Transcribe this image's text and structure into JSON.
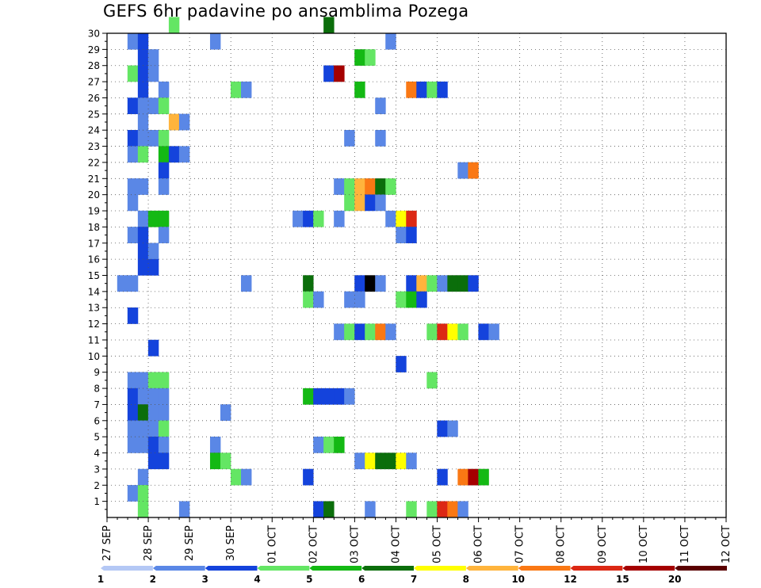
{
  "chart_data": {
    "type": "heatmap",
    "title": "GEFS 6hr padavine po ansamblima Pozega",
    "xlabel": "",
    "ylabel": "",
    "x_ticks": [
      "27 SEP",
      "28 SEP",
      "29 SEP",
      "30 SEP",
      "01 OCT",
      "02 OCT",
      "03 OCT",
      "04 OCT",
      "05 OCT",
      "06 OCT",
      "07 OCT",
      "08 OCT",
      "09 OCT",
      "10 OCT",
      "11 OCT",
      "12 OCT"
    ],
    "x_range": [
      0,
      60
    ],
    "x_step": "6 hours",
    "y_range": [
      0,
      30
    ],
    "y_ticks": [
      1,
      2,
      3,
      4,
      5,
      6,
      7,
      8,
      9,
      10,
      11,
      12,
      13,
      14,
      15,
      16,
      17,
      18,
      19,
      20,
      21,
      22,
      23,
      24,
      25,
      26,
      27,
      28,
      29,
      30
    ],
    "grid": true,
    "legend": {
      "placement": "bottom",
      "colors": [
        "#b4c8f5",
        "#5a87e6",
        "#1443dc",
        "#64e664",
        "#14b914",
        "#0b6e0b",
        "#ffff00",
        "#ffb43c",
        "#fa7814",
        "#dc2814",
        "#a50000",
        "#5a0000"
      ],
      "labels": [
        "1",
        "2",
        "3",
        "4",
        "5",
        "6",
        "7",
        "8",
        "10",
        "12",
        "15",
        "20"
      ]
    },
    "cells": [
      [
        6,
        30,
        3
      ],
      [
        21,
        30,
        5
      ],
      [
        2,
        29,
        1
      ],
      [
        3,
        29,
        2
      ],
      [
        10,
        29,
        1
      ],
      [
        27,
        29,
        1
      ],
      [
        3,
        28,
        2
      ],
      [
        4,
        28,
        1
      ],
      [
        24,
        28,
        4
      ],
      [
        25,
        28,
        3
      ],
      [
        2,
        27,
        3
      ],
      [
        3,
        27,
        2
      ],
      [
        4,
        27,
        1
      ],
      [
        21,
        27,
        2
      ],
      [
        22,
        27,
        10
      ],
      [
        3,
        26,
        2
      ],
      [
        5,
        26,
        1
      ],
      [
        12,
        26,
        3
      ],
      [
        13,
        26,
        1
      ],
      [
        24,
        26,
        4
      ],
      [
        29,
        26,
        8
      ],
      [
        30,
        26,
        2
      ],
      [
        31,
        26,
        3
      ],
      [
        32,
        26,
        2
      ],
      [
        2,
        25,
        2
      ],
      [
        3,
        25,
        1
      ],
      [
        4,
        25,
        1
      ],
      [
        5,
        25,
        3
      ],
      [
        26,
        25,
        1
      ],
      [
        3,
        24,
        1
      ],
      [
        6,
        24,
        7
      ],
      [
        7,
        24,
        1
      ],
      [
        2,
        23,
        2
      ],
      [
        3,
        23,
        1
      ],
      [
        4,
        23,
        1
      ],
      [
        5,
        23,
        3
      ],
      [
        23,
        23,
        1
      ],
      [
        26,
        23,
        1
      ],
      [
        2,
        22,
        1
      ],
      [
        3,
        22,
        3
      ],
      [
        5,
        22,
        4
      ],
      [
        6,
        22,
        2
      ],
      [
        7,
        22,
        1
      ],
      [
        5,
        21,
        2
      ],
      [
        34,
        21,
        1
      ],
      [
        35,
        21,
        8
      ],
      [
        2,
        20,
        1
      ],
      [
        3,
        20,
        1
      ],
      [
        5,
        20,
        1
      ],
      [
        22,
        20,
        1
      ],
      [
        23,
        20,
        3
      ],
      [
        24,
        20,
        7
      ],
      [
        25,
        20,
        8
      ],
      [
        26,
        20,
        5
      ],
      [
        27,
        20,
        3
      ],
      [
        2,
        19,
        1
      ],
      [
        23,
        19,
        3
      ],
      [
        24,
        19,
        7
      ],
      [
        25,
        19,
        2
      ],
      [
        26,
        19,
        1
      ],
      [
        3,
        18,
        1
      ],
      [
        4,
        18,
        4
      ],
      [
        5,
        18,
        4
      ],
      [
        18,
        18,
        1
      ],
      [
        19,
        18,
        2
      ],
      [
        20,
        18,
        3
      ],
      [
        22,
        18,
        1
      ],
      [
        27,
        18,
        1
      ],
      [
        28,
        18,
        6
      ],
      [
        29,
        18,
        9
      ],
      [
        2,
        17,
        1
      ],
      [
        3,
        17,
        2
      ],
      [
        5,
        17,
        1
      ],
      [
        28,
        17,
        1
      ],
      [
        29,
        17,
        2
      ],
      [
        3,
        16,
        2
      ],
      [
        4,
        16,
        1
      ],
      [
        3,
        15,
        2
      ],
      [
        4,
        15,
        2
      ],
      [
        1,
        14,
        1
      ],
      [
        2,
        14,
        1
      ],
      [
        13,
        14,
        1
      ],
      [
        19,
        14,
        5
      ],
      [
        24,
        14,
        2
      ],
      [
        25,
        14,
        12
      ],
      [
        26,
        14,
        1
      ],
      [
        29,
        14,
        2
      ],
      [
        30,
        14,
        7
      ],
      [
        31,
        14,
        3
      ],
      [
        32,
        14,
        1
      ],
      [
        33,
        14,
        5
      ],
      [
        34,
        14,
        5
      ],
      [
        35,
        14,
        2
      ],
      [
        19,
        13,
        3
      ],
      [
        20,
        13,
        1
      ],
      [
        23,
        13,
        1
      ],
      [
        24,
        13,
        1
      ],
      [
        28,
        13,
        3
      ],
      [
        29,
        13,
        4
      ],
      [
        30,
        13,
        2
      ],
      [
        2,
        12,
        2
      ],
      [
        22,
        11,
        1
      ],
      [
        23,
        11,
        3
      ],
      [
        24,
        11,
        2
      ],
      [
        25,
        11,
        3
      ],
      [
        26,
        11,
        8
      ],
      [
        27,
        11,
        1
      ],
      [
        31,
        11,
        3
      ],
      [
        32,
        11,
        9
      ],
      [
        33,
        11,
        6
      ],
      [
        34,
        11,
        3
      ],
      [
        36,
        11,
        2
      ],
      [
        37,
        11,
        1
      ],
      [
        4,
        10,
        2
      ],
      [
        28,
        9,
        2
      ],
      [
        2,
        8,
        1
      ],
      [
        3,
        8,
        1
      ],
      [
        4,
        8,
        3
      ],
      [
        5,
        8,
        3
      ],
      [
        31,
        8,
        3
      ],
      [
        2,
        7,
        2
      ],
      [
        3,
        7,
        1
      ],
      [
        4,
        7,
        1
      ],
      [
        5,
        7,
        1
      ],
      [
        19,
        7,
        4
      ],
      [
        20,
        7,
        2
      ],
      [
        21,
        7,
        2
      ],
      [
        22,
        7,
        2
      ],
      [
        23,
        7,
        1
      ],
      [
        2,
        6,
        2
      ],
      [
        3,
        6,
        5
      ],
      [
        4,
        6,
        1
      ],
      [
        5,
        6,
        1
      ],
      [
        11,
        6,
        1
      ],
      [
        2,
        5,
        1
      ],
      [
        3,
        5,
        1
      ],
      [
        4,
        5,
        1
      ],
      [
        5,
        5,
        3
      ],
      [
        32,
        5,
        2
      ],
      [
        33,
        5,
        1
      ],
      [
        2,
        4,
        1
      ],
      [
        3,
        4,
        1
      ],
      [
        4,
        4,
        2
      ],
      [
        5,
        4,
        1
      ],
      [
        10,
        4,
        1
      ],
      [
        20,
        4,
        1
      ],
      [
        21,
        4,
        3
      ],
      [
        22,
        4,
        4
      ],
      [
        4,
        3,
        2
      ],
      [
        5,
        3,
        2
      ],
      [
        10,
        3,
        4
      ],
      [
        11,
        3,
        3
      ],
      [
        24,
        3,
        1
      ],
      [
        25,
        3,
        6
      ],
      [
        26,
        3,
        5
      ],
      [
        27,
        3,
        5
      ],
      [
        28,
        3,
        6
      ],
      [
        29,
        3,
        1
      ],
      [
        3,
        2,
        1
      ],
      [
        12,
        2,
        3
      ],
      [
        13,
        2,
        1
      ],
      [
        19,
        2,
        2
      ],
      [
        32,
        2,
        2
      ],
      [
        34,
        2,
        8
      ],
      [
        35,
        2,
        10
      ],
      [
        36,
        2,
        4
      ],
      [
        2,
        1,
        1
      ],
      [
        3,
        1,
        3
      ],
      [
        3,
        0,
        3
      ],
      [
        7,
        0,
        1
      ],
      [
        20,
        0,
        2
      ],
      [
        21,
        0,
        5
      ],
      [
        25,
        0,
        1
      ],
      [
        29,
        0,
        3
      ],
      [
        31,
        0,
        3
      ],
      [
        32,
        0,
        9
      ],
      [
        33,
        0,
        8
      ],
      [
        34,
        0,
        1
      ]
    ]
  }
}
